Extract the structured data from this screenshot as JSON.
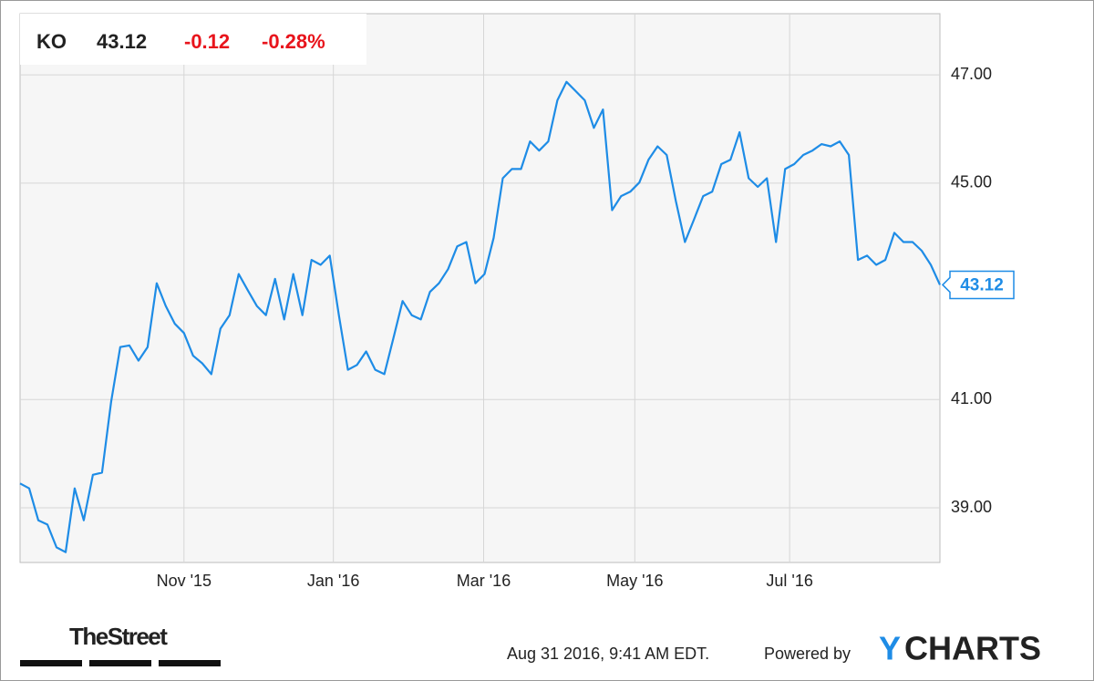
{
  "header": {
    "ticker": "KO",
    "price": "43.12",
    "change": "-0.12",
    "change_pct": "-0.28%"
  },
  "chart_data": {
    "type": "line",
    "color": "#1e8ce6",
    "grid": true,
    "values": [
      39.45,
      39.36,
      38.77,
      38.69,
      38.27,
      38.18,
      39.36,
      38.77,
      39.61,
      39.65,
      40.96,
      41.97,
      42.0,
      41.72,
      41.97,
      43.15,
      42.73,
      42.4,
      42.23,
      41.81,
      41.67,
      41.47,
      42.31,
      42.56,
      43.32,
      43.02,
      42.73,
      42.56,
      43.23,
      42.48,
      43.32,
      42.56,
      43.58,
      43.49,
      43.66,
      42.56,
      41.55,
      41.64,
      41.89,
      41.55,
      41.47,
      42.14,
      42.82,
      42.56,
      42.48,
      42.99,
      43.15,
      43.41,
      43.83,
      43.91,
      43.15,
      43.32,
      43.99,
      45.09,
      45.26,
      45.26,
      45.77,
      45.6,
      45.77,
      46.53,
      46.87,
      46.7,
      46.53,
      46.02,
      46.36,
      44.5,
      44.76,
      44.84,
      45.01,
      45.43,
      45.68,
      45.52,
      44.67,
      43.91,
      44.33,
      44.76,
      44.84,
      45.35,
      45.43,
      45.94,
      45.09,
      44.93,
      45.09,
      43.91,
      45.26,
      45.35,
      45.52,
      45.6,
      45.72,
      45.68,
      45.77,
      45.52,
      43.58,
      43.66,
      43.49,
      43.58,
      44.08,
      43.91,
      43.91,
      43.75,
      43.49,
      43.12
    ],
    "xlim": [
      0,
      101
    ],
    "xticks": [
      {
        "value": 18.0,
        "label": "Nov '15"
      },
      {
        "value": 34.4,
        "label": "Jan '16"
      },
      {
        "value": 50.9,
        "label": "Mar '16"
      },
      {
        "value": 67.5,
        "label": "May '16"
      },
      {
        "value": 84.5,
        "label": "Jul '16"
      }
    ],
    "ylim": [
      37.99,
      48.13
    ],
    "yticks": [
      {
        "value": 39,
        "label": "39.00"
      },
      {
        "value": 41,
        "label": "41.00"
      },
      {
        "value": 45,
        "label": "45.00"
      },
      {
        "value": 47,
        "label": "47.00"
      }
    ]
  },
  "footer": {
    "source": "TheStreet",
    "timestamp": "Aug 31 2016, 9:41 AM EDT.",
    "powered": "Powered by",
    "brand_y": "Y",
    "brand_rest": "CHARTS"
  }
}
